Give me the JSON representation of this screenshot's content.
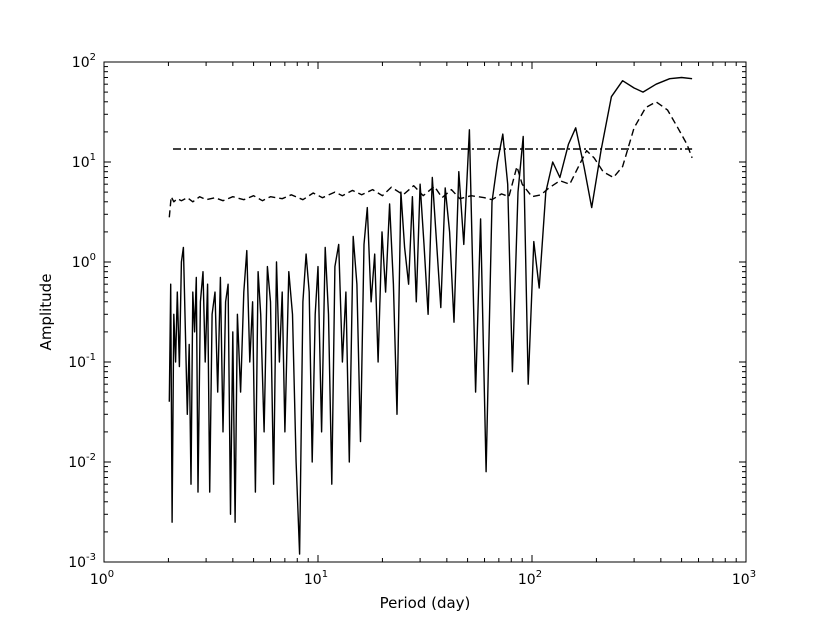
{
  "chart_data": {
    "type": "line",
    "xlabel": "Period (day)",
    "ylabel": "Amplitude",
    "xscale": "log",
    "yscale": "log",
    "xlim": [
      1,
      1000
    ],
    "ylim": [
      0.001,
      100
    ],
    "x_ticks": [
      {
        "base": "10",
        "exp": "0",
        "value": 1
      },
      {
        "base": "10",
        "exp": "1",
        "value": 10
      },
      {
        "base": "10",
        "exp": "2",
        "value": 100
      },
      {
        "base": "10",
        "exp": "3",
        "value": 1000
      }
    ],
    "y_ticks": [
      {
        "base": "10",
        "exp": "-3",
        "value": 0.001
      },
      {
        "base": "10",
        "exp": "-2",
        "value": 0.01
      },
      {
        "base": "10",
        "exp": "-1",
        "value": 0.1
      },
      {
        "base": "10",
        "exp": "0",
        "value": 1
      },
      {
        "base": "10",
        "exp": "1",
        "value": 10
      },
      {
        "base": "10",
        "exp": "2",
        "value": 100
      }
    ],
    "grid": false,
    "legend": "none",
    "series": [
      {
        "style": "solid",
        "color": "#000000",
        "points": [
          [
            2.02,
            0.04
          ],
          [
            2.05,
            0.6
          ],
          [
            2.08,
            0.0025
          ],
          [
            2.12,
            0.3
          ],
          [
            2.16,
            0.1
          ],
          [
            2.2,
            0.5
          ],
          [
            2.25,
            0.09
          ],
          [
            2.3,
            1.0
          ],
          [
            2.35,
            1.4
          ],
          [
            2.4,
            0.2
          ],
          [
            2.45,
            0.03
          ],
          [
            2.5,
            0.15
          ],
          [
            2.55,
            0.006
          ],
          [
            2.6,
            0.5
          ],
          [
            2.65,
            0.2
          ],
          [
            2.7,
            0.7
          ],
          [
            2.75,
            0.005
          ],
          [
            2.82,
            0.4
          ],
          [
            2.9,
            0.8
          ],
          [
            2.97,
            0.1
          ],
          [
            3.05,
            0.6
          ],
          [
            3.12,
            0.005
          ],
          [
            3.2,
            0.3
          ],
          [
            3.3,
            0.5
          ],
          [
            3.4,
            0.05
          ],
          [
            3.5,
            0.7
          ],
          [
            3.6,
            0.02
          ],
          [
            3.7,
            0.4
          ],
          [
            3.8,
            0.6
          ],
          [
            3.9,
            0.003
          ],
          [
            4.0,
            0.2
          ],
          [
            4.1,
            0.0025
          ],
          [
            4.2,
            0.3
          ],
          [
            4.35,
            0.05
          ],
          [
            4.5,
            0.5
          ],
          [
            4.65,
            1.3
          ],
          [
            4.8,
            0.1
          ],
          [
            4.95,
            0.4
          ],
          [
            5.1,
            0.005
          ],
          [
            5.25,
            0.8
          ],
          [
            5.4,
            0.3
          ],
          [
            5.6,
            0.02
          ],
          [
            5.8,
            0.9
          ],
          [
            6.0,
            0.4
          ],
          [
            6.2,
            0.006
          ],
          [
            6.4,
            1.0
          ],
          [
            6.6,
            0.1
          ],
          [
            6.8,
            0.5
          ],
          [
            7.0,
            0.02
          ],
          [
            7.3,
            0.8
          ],
          [
            7.6,
            0.3
          ],
          [
            7.9,
            0.01
          ],
          [
            8.2,
            0.0012
          ],
          [
            8.5,
            0.4
          ],
          [
            8.8,
            1.2
          ],
          [
            9.1,
            0.5
          ],
          [
            9.4,
            0.01
          ],
          [
            9.7,
            0.3
          ],
          [
            10.0,
            0.9
          ],
          [
            10.4,
            0.02
          ],
          [
            10.8,
            1.4
          ],
          [
            11.2,
            0.3
          ],
          [
            11.6,
            0.006
          ],
          [
            12.0,
            0.9
          ],
          [
            12.5,
            1.5
          ],
          [
            13.0,
            0.1
          ],
          [
            13.5,
            0.5
          ],
          [
            14.0,
            0.01
          ],
          [
            14.6,
            1.8
          ],
          [
            15.2,
            0.6
          ],
          [
            15.8,
            0.016
          ],
          [
            16.4,
            1.5
          ],
          [
            17.0,
            3.5
          ],
          [
            17.7,
            0.4
          ],
          [
            18.4,
            1.2
          ],
          [
            19.1,
            0.1
          ],
          [
            19.9,
            2.0
          ],
          [
            20.7,
            0.5
          ],
          [
            21.6,
            3.8
          ],
          [
            22.5,
            0.6
          ],
          [
            23.4,
            0.03
          ],
          [
            24.4,
            5.0
          ],
          [
            25.4,
            1.4
          ],
          [
            26.5,
            0.6
          ],
          [
            27.6,
            4.5
          ],
          [
            28.8,
            0.4
          ],
          [
            30.0,
            6.0
          ],
          [
            31.3,
            1.5
          ],
          [
            32.7,
            0.3
          ],
          [
            34.2,
            7.0
          ],
          [
            35.8,
            1.6
          ],
          [
            37.5,
            0.35
          ],
          [
            39.3,
            5.5
          ],
          [
            41.2,
            2.0
          ],
          [
            43.2,
            0.25
          ],
          [
            45.5,
            8.0
          ],
          [
            48.0,
            1.5
          ],
          [
            51.0,
            21.0
          ],
          [
            54.5,
            0.05
          ],
          [
            57.5,
            2.7
          ],
          [
            61.0,
            0.008
          ],
          [
            65.0,
            4.0
          ],
          [
            69.0,
            10.0
          ],
          [
            73.0,
            19.0
          ],
          [
            77.0,
            6.0
          ],
          [
            81.0,
            0.08
          ],
          [
            86.0,
            5.0
          ],
          [
            91.0,
            18.0
          ],
          [
            96.0,
            0.06
          ],
          [
            102.0,
            1.6
          ],
          [
            108.0,
            0.55
          ],
          [
            116.0,
            5.0
          ],
          [
            125.0,
            10.0
          ],
          [
            135.0,
            7.0
          ],
          [
            148.0,
            15.0
          ],
          [
            160.0,
            22.0
          ],
          [
            175.0,
            9.0
          ],
          [
            190.0,
            3.5
          ],
          [
            210.0,
            13.0
          ],
          [
            235.0,
            45.0
          ],
          [
            265.0,
            65.0
          ],
          [
            300.0,
            55.0
          ],
          [
            330.0,
            50.0
          ],
          [
            380.0,
            60.0
          ],
          [
            440.0,
            68.0
          ],
          [
            500.0,
            70.0
          ],
          [
            560.0,
            68.0
          ]
        ]
      },
      {
        "style": "dashed",
        "color": "#000000",
        "points": [
          [
            2.02,
            2.8
          ],
          [
            2.06,
            4.5
          ],
          [
            2.12,
            4.0
          ],
          [
            2.2,
            4.3
          ],
          [
            2.3,
            4.1
          ],
          [
            2.45,
            4.4
          ],
          [
            2.6,
            4.0
          ],
          [
            2.8,
            4.5
          ],
          [
            3.0,
            4.2
          ],
          [
            3.3,
            4.4
          ],
          [
            3.6,
            4.1
          ],
          [
            4.0,
            4.5
          ],
          [
            4.5,
            4.2
          ],
          [
            5.0,
            4.6
          ],
          [
            5.5,
            4.1
          ],
          [
            6.0,
            4.5
          ],
          [
            6.8,
            4.3
          ],
          [
            7.5,
            4.7
          ],
          [
            8.5,
            4.2
          ],
          [
            9.5,
            4.9
          ],
          [
            10.5,
            4.4
          ],
          [
            12.0,
            5.0
          ],
          [
            13.0,
            4.6
          ],
          [
            14.5,
            5.2
          ],
          [
            16.0,
            4.7
          ],
          [
            18.0,
            5.3
          ],
          [
            20.0,
            4.6
          ],
          [
            22.0,
            5.6
          ],
          [
            25.0,
            4.7
          ],
          [
            28.0,
            5.8
          ],
          [
            31.0,
            4.6
          ],
          [
            35.0,
            5.7
          ],
          [
            38.0,
            4.4
          ],
          [
            42.0,
            5.3
          ],
          [
            46.0,
            4.3
          ],
          [
            52.0,
            4.6
          ],
          [
            60.0,
            4.4
          ],
          [
            65.0,
            4.2
          ],
          [
            72.0,
            4.8
          ],
          [
            78.0,
            4.5
          ],
          [
            85.0,
            9.0
          ],
          [
            90.0,
            6.0
          ],
          [
            100.0,
            4.5
          ],
          [
            110.0,
            4.7
          ],
          [
            120.0,
            5.5
          ],
          [
            135.0,
            6.5
          ],
          [
            150.0,
            6.0
          ],
          [
            165.0,
            9.0
          ],
          [
            180.0,
            13.0
          ],
          [
            195.0,
            11.0
          ],
          [
            215.0,
            8.0
          ],
          [
            240.0,
            7.0
          ],
          [
            265.0,
            9.0
          ],
          [
            300.0,
            22.0
          ],
          [
            340.0,
            35.0
          ],
          [
            380.0,
            40.0
          ],
          [
            430.0,
            33.0
          ],
          [
            480.0,
            22.0
          ],
          [
            530.0,
            15.0
          ],
          [
            560.0,
            11.0
          ]
        ]
      },
      {
        "style": "dashdot",
        "color": "#000000",
        "points": [
          [
            2.1,
            13.5
          ],
          [
            560.0,
            13.5
          ]
        ]
      }
    ]
  }
}
